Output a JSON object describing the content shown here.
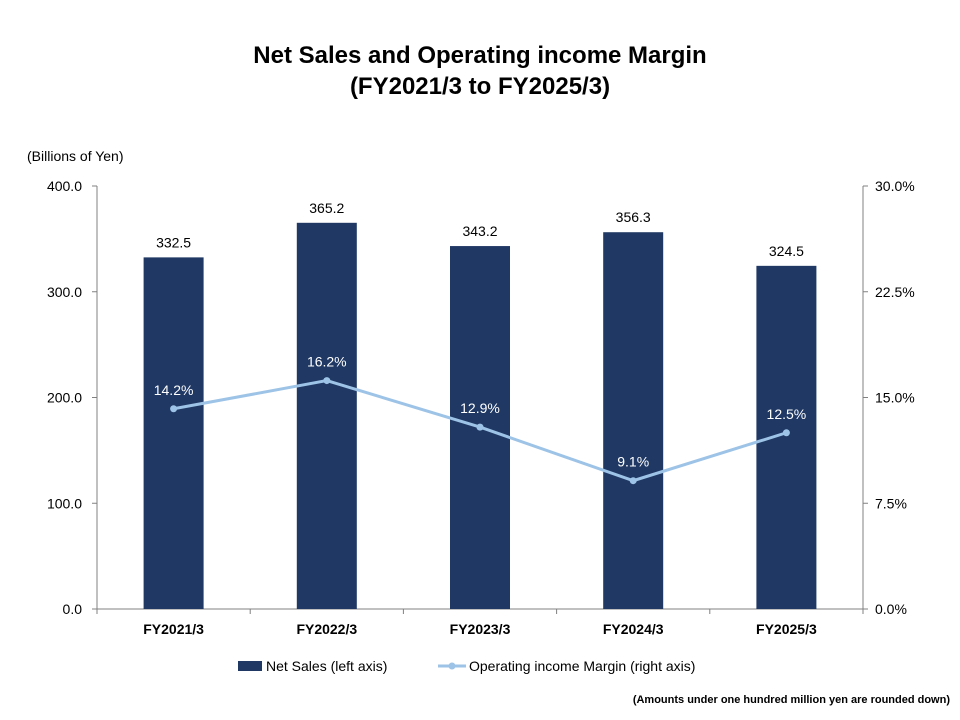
{
  "chart_data": {
    "type": "bar",
    "title_line1": "Net Sales and Operating income Margin",
    "title_line2": "(FY2021/3 to FY2025/3)",
    "ylabel": "(Billions of Yen)",
    "categories": [
      "FY2021/3",
      "FY2022/3",
      "FY2023/3",
      "FY2024/3",
      "FY2025/3"
    ],
    "left_axis": {
      "ylim": [
        0,
        400
      ],
      "ticks": [
        "400.0",
        "300.0",
        "200.0",
        "100.0",
        "0.0"
      ],
      "tick_values": [
        400,
        300,
        200,
        100,
        0
      ]
    },
    "right_axis": {
      "ylim": [
        0,
        30
      ],
      "ticks": [
        "30.0%",
        "22.5%",
        "15.0%",
        "7.5%",
        "0.0%"
      ],
      "tick_values": [
        30,
        22.5,
        15,
        7.5,
        0
      ]
    },
    "series": [
      {
        "name": "Net Sales (left axis)",
        "type": "bar",
        "axis": "left",
        "color": "#1f3864",
        "values": [
          332.5,
          365.2,
          343.2,
          356.3,
          324.5
        ],
        "labels": [
          "332.5",
          "365.2",
          "343.2",
          "356.3",
          "324.5"
        ]
      },
      {
        "name": "Operating income Margin (right axis)",
        "type": "line",
        "axis": "right",
        "color": "#9dc3e6",
        "values": [
          14.2,
          16.2,
          12.9,
          9.1,
          12.5
        ],
        "labels": [
          "14.2%",
          "16.2%",
          "12.9%",
          "9.1%",
          "12.5%"
        ]
      }
    ],
    "legend_position": "bottom",
    "grid": false,
    "footnote": "(Amounts under one hundred million yen are rounded down)"
  }
}
